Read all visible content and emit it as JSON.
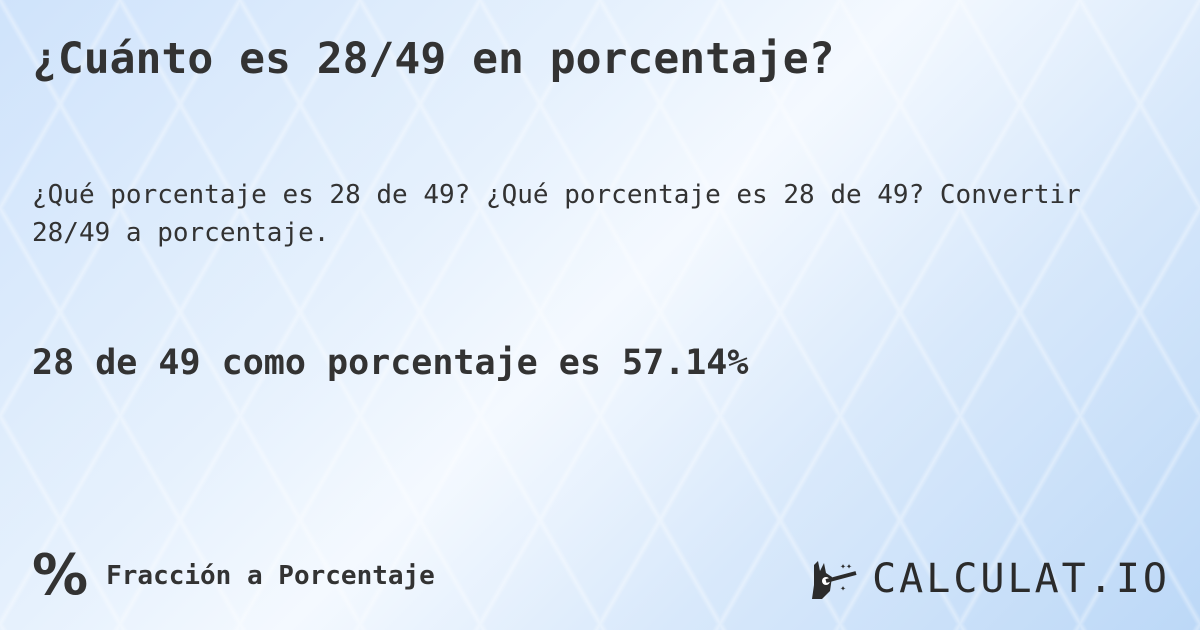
{
  "title": "¿Cuánto es 28/49 en porcentaje?",
  "subtitle": "¿Qué porcentaje es 28 de 49? ¿Qué porcentaje es 28 de 49? Convertir 28/49 a porcentaje.",
  "answer": "28 de 49 como porcentaje es 57.14%",
  "footer": {
    "icon": "percent-icon",
    "glyph": "%",
    "label": "Fracción a Porcentaje"
  },
  "logo": {
    "text": "CALCULAT.IO",
    "icon": "magic-hand-wand-icon"
  }
}
